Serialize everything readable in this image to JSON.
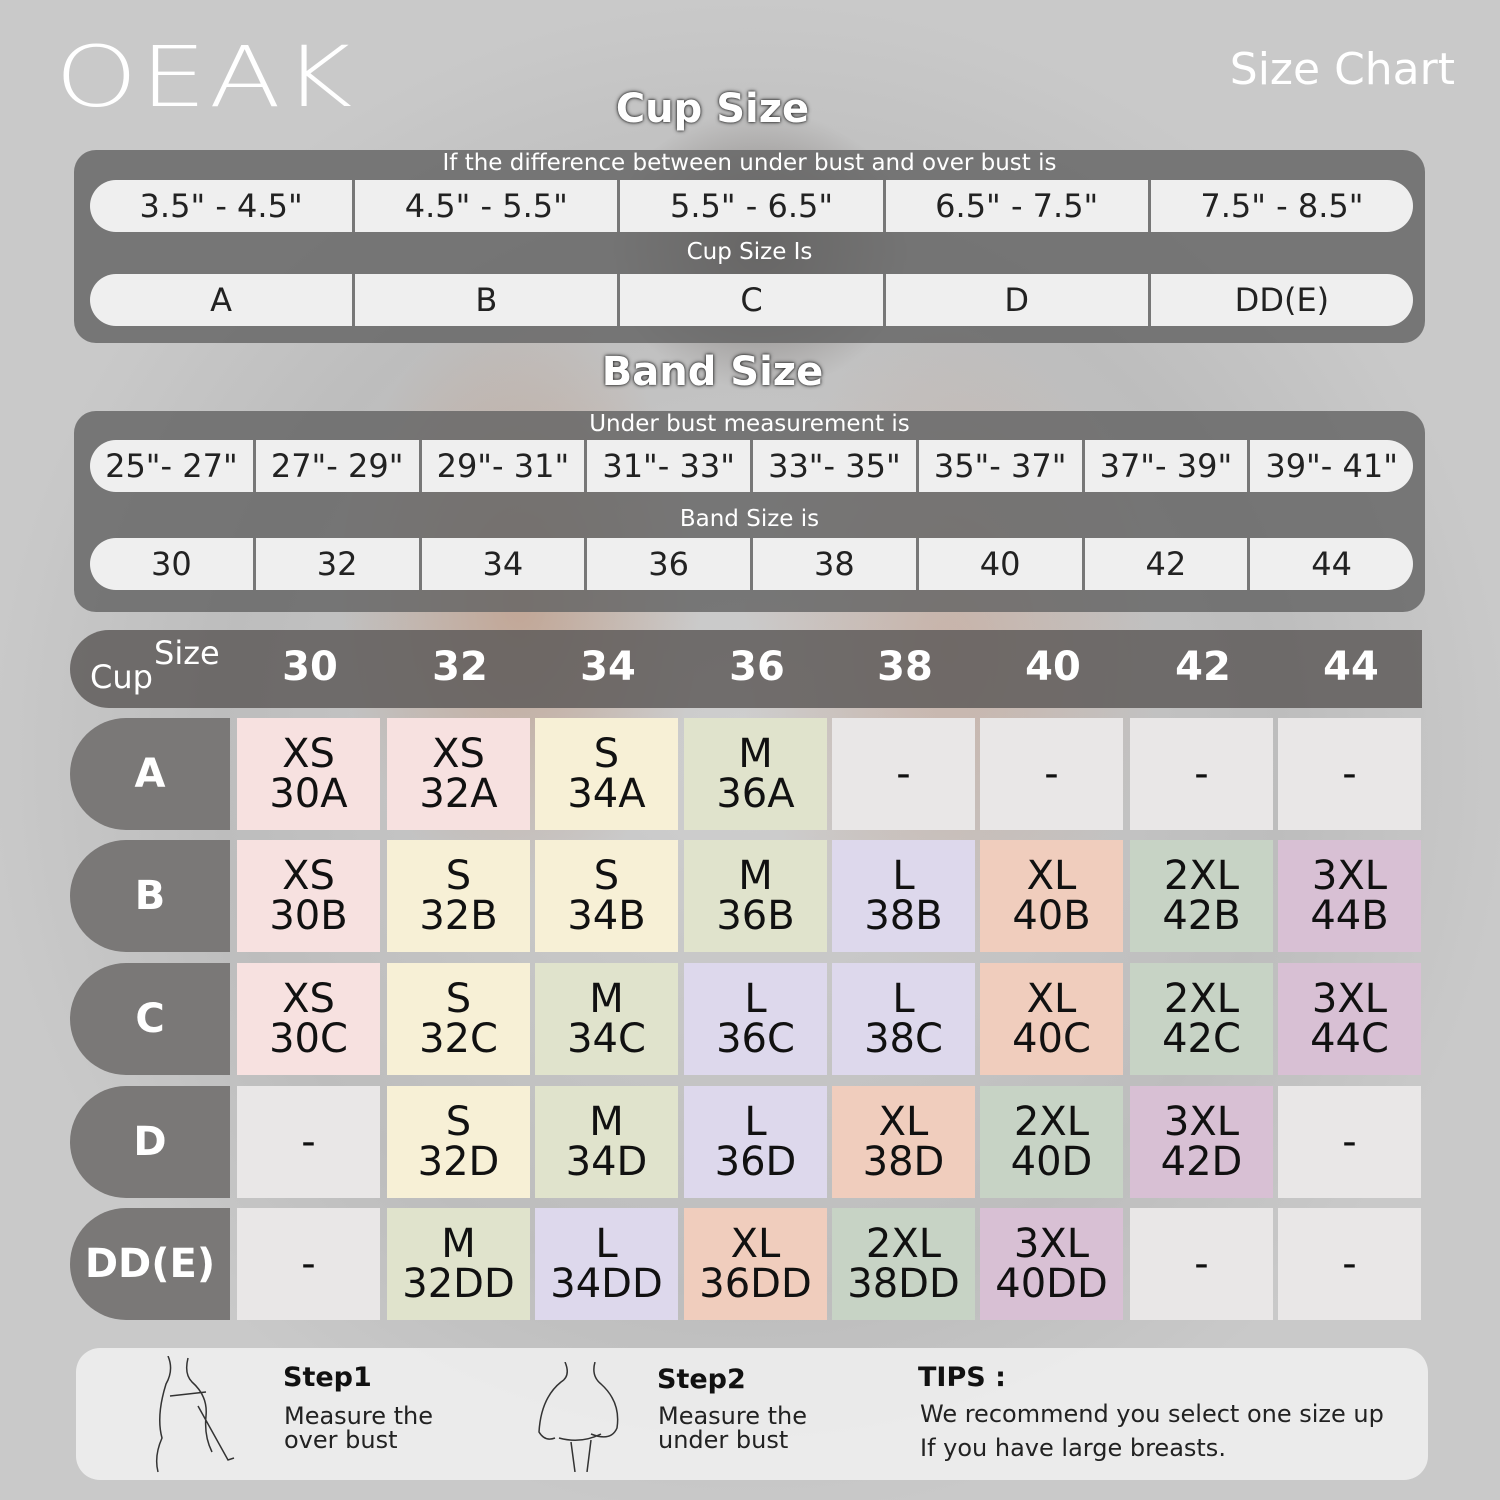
{
  "brand": "OEAK",
  "title": "Size Chart",
  "cup_section": {
    "title": "Cup Size",
    "caption": "If the  difference between under bust and over bust is",
    "ranges": [
      "3.5\" -  4.5\"",
      "4.5\" -  5.5\"",
      "5.5\" -  6.5\"",
      "6.5\" -  7.5\"",
      "7.5\" -  8.5\""
    ],
    "caption2": "Cup Size Is",
    "cups": [
      "A",
      "B",
      "C",
      "D",
      "DD(E)"
    ]
  },
  "band_section": {
    "title": "Band Size",
    "caption": "Under bust measurement is",
    "ranges": [
      "25\"- 27\"",
      "27\"- 29\"",
      "29\"- 31\"",
      "31\"- 33\"",
      "33\"- 35\"",
      "35\"- 37\"",
      "37\"- 39\"",
      "39\"- 41\""
    ],
    "caption2": "Band Size is",
    "bands": [
      "30",
      "32",
      "34",
      "36",
      "38",
      "40",
      "42",
      "44"
    ]
  },
  "table": {
    "corner_size": "Size",
    "corner_cup": "Cup",
    "columns": [
      "30",
      "32",
      "34",
      "36",
      "38",
      "40",
      "42",
      "44"
    ],
    "rows": [
      {
        "cup": "A",
        "cells": [
          [
            "XS",
            "30A"
          ],
          [
            "XS",
            "32A"
          ],
          [
            "S",
            "34A"
          ],
          [
            "M",
            "36A"
          ],
          [
            "-"
          ],
          [
            "-"
          ],
          [
            "-"
          ],
          [
            "-"
          ]
        ]
      },
      {
        "cup": "B",
        "cells": [
          [
            "XS",
            "30B"
          ],
          [
            "S",
            "32B"
          ],
          [
            "S",
            "34B"
          ],
          [
            "M",
            "36B"
          ],
          [
            "L",
            "38B"
          ],
          [
            "XL",
            "40B"
          ],
          [
            "2XL",
            "42B"
          ],
          [
            "3XL",
            "44B"
          ]
        ]
      },
      {
        "cup": "C",
        "cells": [
          [
            "XS",
            "30C"
          ],
          [
            "S",
            "32C"
          ],
          [
            "M",
            "34C"
          ],
          [
            "L",
            "36C"
          ],
          [
            "L",
            "38C"
          ],
          [
            "XL",
            "40C"
          ],
          [
            "2XL",
            "42C"
          ],
          [
            "3XL",
            "44C"
          ]
        ]
      },
      {
        "cup": "D",
        "cells": [
          [
            "-"
          ],
          [
            "S",
            "32D"
          ],
          [
            "M",
            "34D"
          ],
          [
            "L",
            "36D"
          ],
          [
            "XL",
            "38D"
          ],
          [
            "2XL",
            "40D"
          ],
          [
            "3XL",
            "42D"
          ],
          [
            "-"
          ]
        ]
      },
      {
        "cup": "DD(E)",
        "cells": [
          [
            "-"
          ],
          [
            "M",
            "32DD"
          ],
          [
            "L",
            "34DD"
          ],
          [
            "XL",
            "36DD"
          ],
          [
            "2XL",
            "38DD"
          ],
          [
            "3XL",
            "40DD"
          ],
          [
            "-"
          ],
          [
            "-"
          ]
        ]
      }
    ]
  },
  "size_colors": {
    "XS": "#f7e1e0",
    "S": "#f7f0d6",
    "M": "#e0e3cc",
    "L": "#ddd8ec",
    "XL": "#f0cdbd",
    "2XL": "#c7d3c5",
    "3XL": "#d8c0d4",
    "-": "#e9e7e7"
  },
  "footer": {
    "step1_title": "Step1",
    "step1_text1": "Measure the",
    "step1_text2": "over bust",
    "step2_title": "Step2",
    "step2_text1": "Measure the",
    "step2_text2": "under bust",
    "tips_title": "TIPS :",
    "tips_text1": "We recommend you select one size up",
    "tips_text2": "If you have large breasts.",
    "icons": [
      "over-bust-measure-illustration-icon",
      "under-bust-measure-illustration-icon"
    ]
  }
}
